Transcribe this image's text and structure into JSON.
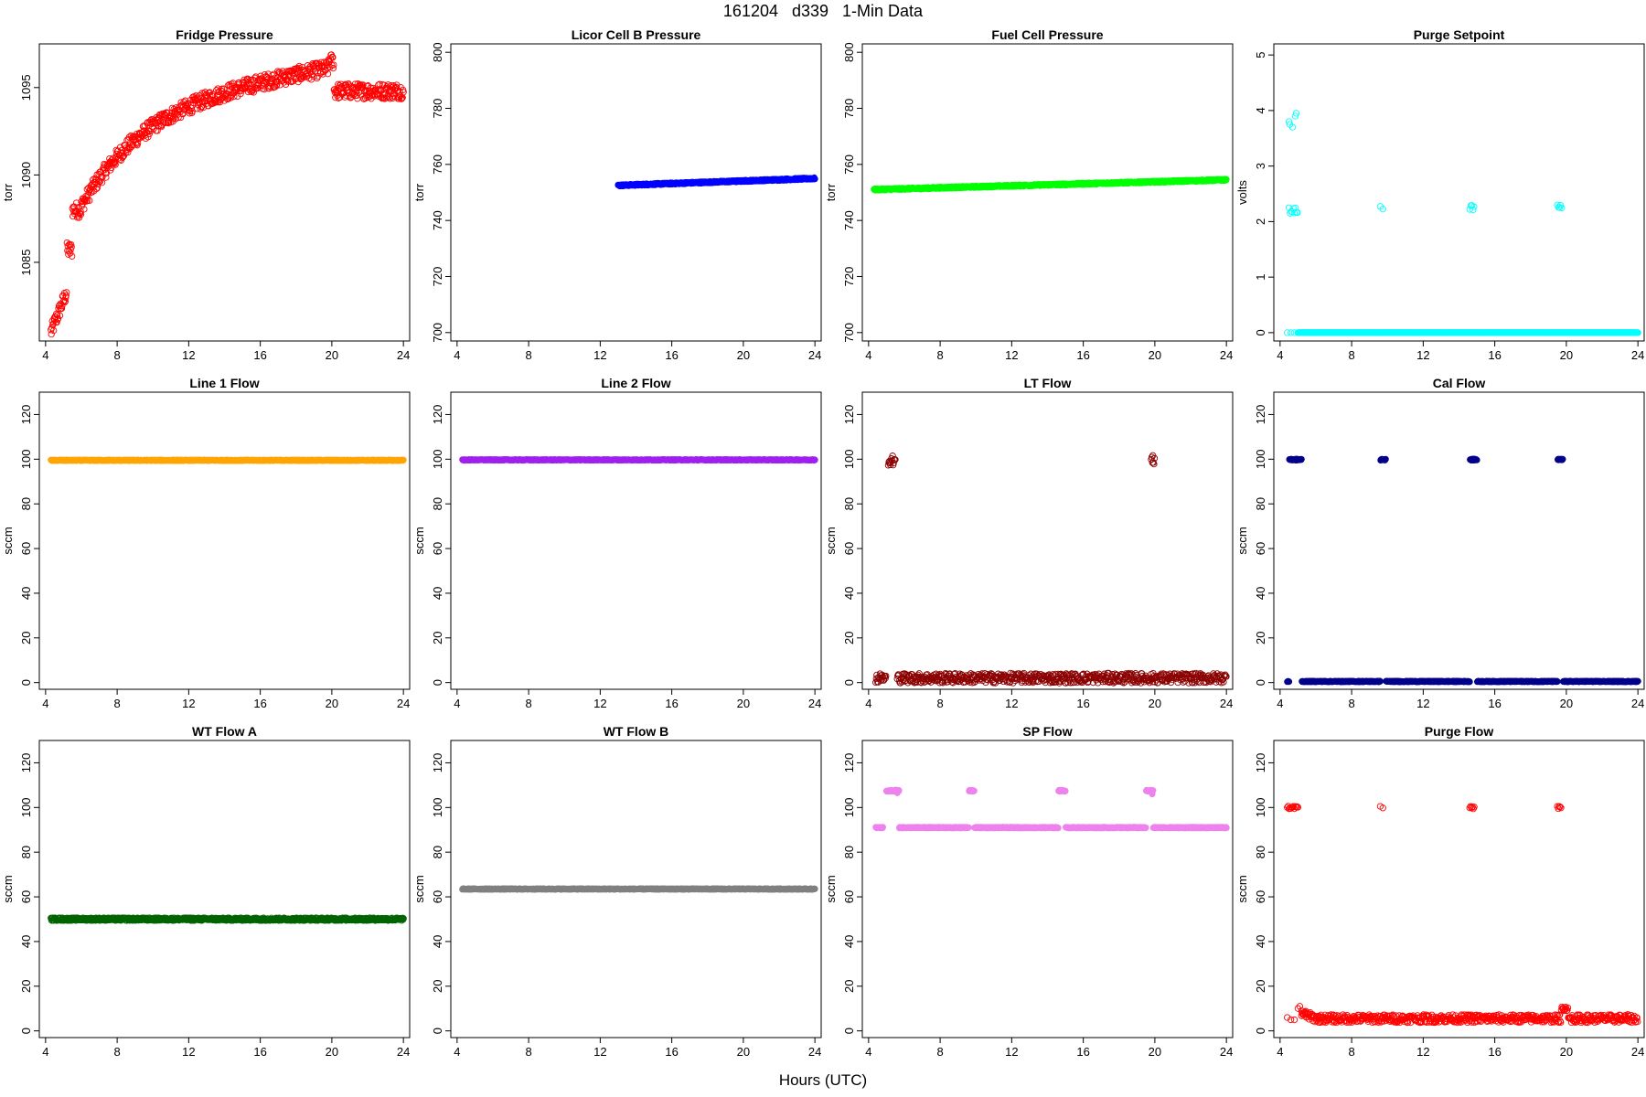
{
  "page": {
    "title": "161204   d339   1-Min Data",
    "xlabel": "Hours (UTC)"
  },
  "chart_data": [
    {
      "type": "scatter",
      "title": "Fridge Pressure",
      "ylabel": "torr",
      "xlim": [
        4,
        24
      ],
      "ylim": [
        1080.5,
        1097.5
      ],
      "xticks": [
        4,
        8,
        12,
        16,
        20,
        24
      ],
      "yticks": [
        1085,
        1090,
        1095
      ],
      "color": "#ff0000",
      "hollow": true,
      "profile": "fridge"
    },
    {
      "type": "scatter",
      "title": "Licor Cell B Pressure",
      "ylabel": "torr",
      "xlim": [
        4,
        24
      ],
      "ylim": [
        697,
        803
      ],
      "xticks": [
        4,
        8,
        12,
        16,
        20,
        24
      ],
      "yticks": [
        700,
        720,
        740,
        760,
        780,
        800
      ],
      "color": "#0000ff",
      "hollow": false,
      "profile": "linear",
      "x_start": 13.0,
      "y_start": 752.5,
      "y_end": 755,
      "noise": 0.3
    },
    {
      "type": "scatter",
      "title": "Fuel Cell Pressure",
      "ylabel": "torr",
      "xlim": [
        4,
        24
      ],
      "ylim": [
        697,
        803
      ],
      "xticks": [
        4,
        8,
        12,
        16,
        20,
        24
      ],
      "yticks": [
        700,
        720,
        740,
        760,
        780,
        800
      ],
      "color": "#00ff00",
      "hollow": false,
      "profile": "linear",
      "x_start": 4.3,
      "y_start": 751,
      "y_end": 754.5,
      "noise": 0.3
    },
    {
      "type": "scatter",
      "title": "Purge Setpoint",
      "ylabel": "volts",
      "xlim": [
        4,
        24
      ],
      "ylim": [
        -0.15,
        5.2
      ],
      "xticks": [
        4,
        8,
        12,
        16,
        20,
        24
      ],
      "yticks": [
        0,
        1,
        2,
        3,
        4,
        5
      ],
      "color": "#00ffff",
      "hollow": true,
      "profile": "purge_setpoint"
    },
    {
      "type": "scatter",
      "title": "Line 1 Flow",
      "ylabel": "sccm",
      "xlim": [
        4,
        24
      ],
      "ylim": [
        -3,
        130
      ],
      "xticks": [
        4,
        8,
        12,
        16,
        20,
        24
      ],
      "yticks": [
        0,
        20,
        40,
        60,
        80,
        100,
        120
      ],
      "color": "#ffa500",
      "hollow": false,
      "profile": "flat",
      "x_start": 4.3,
      "value": 99.5,
      "noise": 0.2
    },
    {
      "type": "scatter",
      "title": "Line 2 Flow",
      "ylabel": "sccm",
      "xlim": [
        4,
        24
      ],
      "ylim": [
        -3,
        130
      ],
      "xticks": [
        4,
        8,
        12,
        16,
        20,
        24
      ],
      "yticks": [
        0,
        20,
        40,
        60,
        80,
        100,
        120
      ],
      "color": "#a020f0",
      "hollow": false,
      "profile": "flat",
      "x_start": 4.3,
      "value": 99.7,
      "noise": 0.2
    },
    {
      "type": "scatter",
      "title": "LT Flow",
      "ylabel": "sccm",
      "xlim": [
        4,
        24
      ],
      "ylim": [
        -3,
        130
      ],
      "xticks": [
        4,
        8,
        12,
        16,
        20,
        24
      ],
      "yticks": [
        0,
        20,
        40,
        60,
        80,
        100,
        120
      ],
      "color": "#8b0000",
      "hollow": true,
      "profile": "lt"
    },
    {
      "type": "scatter",
      "title": "Cal Flow",
      "ylabel": "sccm",
      "xlim": [
        4,
        24
      ],
      "ylim": [
        -3,
        130
      ],
      "xticks": [
        4,
        8,
        12,
        16,
        20,
        24
      ],
      "yticks": [
        0,
        20,
        40,
        60,
        80,
        100,
        120
      ],
      "color": "#00008b",
      "hollow": false,
      "profile": "cal"
    },
    {
      "type": "scatter",
      "title": "WT Flow A",
      "ylabel": "sccm",
      "xlim": [
        4,
        24
      ],
      "ylim": [
        -3,
        130
      ],
      "xticks": [
        4,
        8,
        12,
        16,
        20,
        24
      ],
      "yticks": [
        0,
        20,
        40,
        60,
        80,
        100,
        120
      ],
      "color": "#006400",
      "hollow": true,
      "profile": "flat",
      "x_start": 4.3,
      "value": 50,
      "noise": 0.6
    },
    {
      "type": "scatter",
      "title": "WT Flow B",
      "ylabel": "sccm",
      "xlim": [
        4,
        24
      ],
      "ylim": [
        -3,
        130
      ],
      "xticks": [
        4,
        8,
        12,
        16,
        20,
        24
      ],
      "yticks": [
        0,
        20,
        40,
        60,
        80,
        100,
        120
      ],
      "color": "#808080",
      "hollow": false,
      "profile": "flat",
      "x_start": 4.3,
      "value": 63.5,
      "noise": 0.2
    },
    {
      "type": "scatter",
      "title": "SP Flow",
      "ylabel": "sccm",
      "xlim": [
        4,
        24
      ],
      "ylim": [
        -3,
        130
      ],
      "xticks": [
        4,
        8,
        12,
        16,
        20,
        24
      ],
      "yticks": [
        0,
        20,
        40,
        60,
        80,
        100,
        120
      ],
      "color": "#ee82ee",
      "hollow": false,
      "profile": "sp"
    },
    {
      "type": "scatter",
      "title": "Purge Flow",
      "ylabel": "sccm",
      "xlim": [
        4,
        24
      ],
      "ylim": [
        -3,
        130
      ],
      "xticks": [
        4,
        8,
        12,
        16,
        20,
        24
      ],
      "yticks": [
        0,
        20,
        40,
        60,
        80,
        100,
        120
      ],
      "color": "#ff0000",
      "hollow": true,
      "profile": "purge_flow"
    }
  ]
}
